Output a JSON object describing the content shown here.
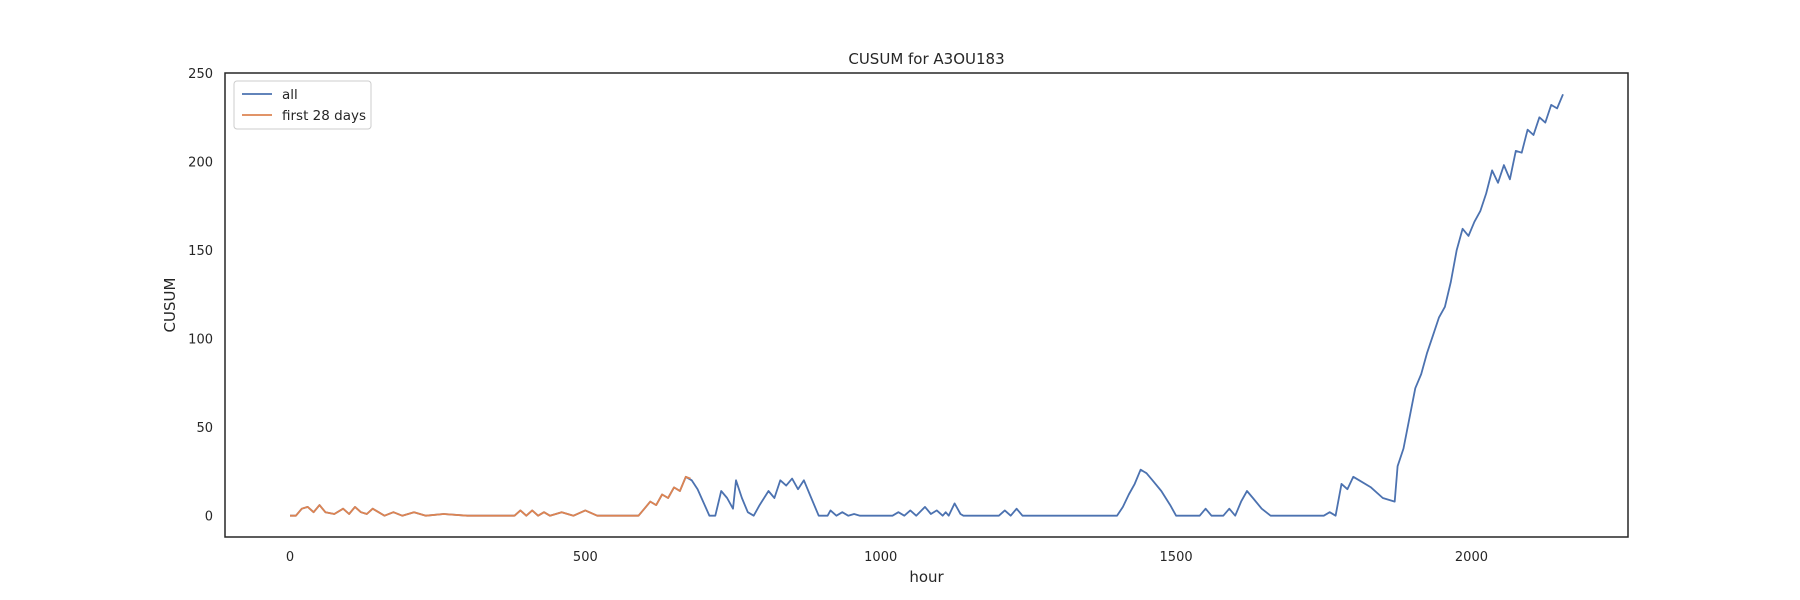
{
  "chart_data": {
    "type": "line",
    "title": "CUSUM for A3OU183",
    "xlabel": "hour",
    "ylabel": "CUSUM",
    "xlim": [
      -110,
      2265
    ],
    "ylim": [
      -12,
      250
    ],
    "xticks": [
      0,
      500,
      1000,
      1500,
      2000
    ],
    "yticks": [
      0,
      50,
      100,
      150,
      200,
      250
    ],
    "grid": false,
    "legend_placement": "top-left",
    "series": [
      {
        "name": "all",
        "color": "#4c72b0",
        "points": [
          [
            0,
            0
          ],
          [
            10,
            0
          ],
          [
            20,
            4
          ],
          [
            30,
            5
          ],
          [
            40,
            2
          ],
          [
            50,
            6
          ],
          [
            60,
            2
          ],
          [
            75,
            1
          ],
          [
            90,
            4
          ],
          [
            100,
            1
          ],
          [
            110,
            5
          ],
          [
            120,
            2
          ],
          [
            130,
            1
          ],
          [
            140,
            4
          ],
          [
            150,
            2
          ],
          [
            160,
            0
          ],
          [
            175,
            2
          ],
          [
            190,
            0
          ],
          [
            210,
            2
          ],
          [
            230,
            0
          ],
          [
            260,
            1
          ],
          [
            300,
            0
          ],
          [
            380,
            0
          ],
          [
            390,
            3
          ],
          [
            400,
            0
          ],
          [
            410,
            3
          ],
          [
            420,
            0
          ],
          [
            430,
            2
          ],
          [
            440,
            0
          ],
          [
            460,
            2
          ],
          [
            480,
            0
          ],
          [
            500,
            3
          ],
          [
            520,
            0
          ],
          [
            560,
            0
          ],
          [
            590,
            0
          ],
          [
            600,
            4
          ],
          [
            610,
            8
          ],
          [
            620,
            6
          ],
          [
            630,
            12
          ],
          [
            640,
            10
          ],
          [
            650,
            16
          ],
          [
            660,
            14
          ],
          [
            670,
            22
          ],
          [
            680,
            20
          ],
          [
            690,
            15
          ],
          [
            710,
            0
          ],
          [
            720,
            0
          ],
          [
            730,
            14
          ],
          [
            740,
            10
          ],
          [
            750,
            4
          ],
          [
            755,
            20
          ],
          [
            765,
            10
          ],
          [
            775,
            2
          ],
          [
            785,
            0
          ],
          [
            795,
            6
          ],
          [
            810,
            14
          ],
          [
            820,
            10
          ],
          [
            830,
            20
          ],
          [
            840,
            17
          ],
          [
            850,
            21
          ],
          [
            860,
            15
          ],
          [
            870,
            20
          ],
          [
            880,
            12
          ],
          [
            895,
            0
          ],
          [
            910,
            0
          ],
          [
            915,
            3
          ],
          [
            925,
            0
          ],
          [
            935,
            2
          ],
          [
            945,
            0
          ],
          [
            955,
            1
          ],
          [
            965,
            0
          ],
          [
            1020,
            0
          ],
          [
            1030,
            2
          ],
          [
            1040,
            0
          ],
          [
            1050,
            3
          ],
          [
            1060,
            0
          ],
          [
            1075,
            5
          ],
          [
            1085,
            1
          ],
          [
            1095,
            3
          ],
          [
            1105,
            0
          ],
          [
            1110,
            2
          ],
          [
            1115,
            0
          ],
          [
            1125,
            7
          ],
          [
            1135,
            1
          ],
          [
            1140,
            0
          ],
          [
            1200,
            0
          ],
          [
            1210,
            3
          ],
          [
            1220,
            0
          ],
          [
            1230,
            4
          ],
          [
            1240,
            0
          ],
          [
            1300,
            0
          ],
          [
            1400,
            0
          ],
          [
            1410,
            5
          ],
          [
            1420,
            12
          ],
          [
            1430,
            18
          ],
          [
            1440,
            26
          ],
          [
            1450,
            24
          ],
          [
            1460,
            20
          ],
          [
            1475,
            14
          ],
          [
            1490,
            6
          ],
          [
            1500,
            0
          ],
          [
            1540,
            0
          ],
          [
            1550,
            4
          ],
          [
            1560,
            0
          ],
          [
            1580,
            0
          ],
          [
            1590,
            4
          ],
          [
            1600,
            0
          ],
          [
            1610,
            8
          ],
          [
            1620,
            14
          ],
          [
            1630,
            10
          ],
          [
            1645,
            4
          ],
          [
            1660,
            0
          ],
          [
            1750,
            0
          ],
          [
            1760,
            2
          ],
          [
            1770,
            0
          ],
          [
            1780,
            18
          ],
          [
            1790,
            15
          ],
          [
            1800,
            22
          ],
          [
            1810,
            20
          ],
          [
            1830,
            16
          ],
          [
            1850,
            10
          ],
          [
            1870,
            8
          ],
          [
            1875,
            28
          ],
          [
            1885,
            38
          ],
          [
            1895,
            55
          ],
          [
            1905,
            72
          ],
          [
            1915,
            80
          ],
          [
            1925,
            92
          ],
          [
            1935,
            102
          ],
          [
            1945,
            112
          ],
          [
            1955,
            118
          ],
          [
            1965,
            132
          ],
          [
            1975,
            150
          ],
          [
            1985,
            162
          ],
          [
            1995,
            158
          ],
          [
            2005,
            166
          ],
          [
            2015,
            172
          ],
          [
            2025,
            182
          ],
          [
            2035,
            195
          ],
          [
            2045,
            188
          ],
          [
            2055,
            198
          ],
          [
            2065,
            190
          ],
          [
            2075,
            206
          ],
          [
            2085,
            205
          ],
          [
            2095,
            218
          ],
          [
            2105,
            215
          ],
          [
            2115,
            225
          ],
          [
            2125,
            222
          ],
          [
            2135,
            232
          ],
          [
            2145,
            230
          ],
          [
            2155,
            238
          ]
        ]
      },
      {
        "name": "first 28 days",
        "color": "#dd8452",
        "points": [
          [
            0,
            0
          ],
          [
            10,
            0
          ],
          [
            20,
            4
          ],
          [
            30,
            5
          ],
          [
            40,
            2
          ],
          [
            50,
            6
          ],
          [
            60,
            2
          ],
          [
            75,
            1
          ],
          [
            90,
            4
          ],
          [
            100,
            1
          ],
          [
            110,
            5
          ],
          [
            120,
            2
          ],
          [
            130,
            1
          ],
          [
            140,
            4
          ],
          [
            150,
            2
          ],
          [
            160,
            0
          ],
          [
            175,
            2
          ],
          [
            190,
            0
          ],
          [
            210,
            2
          ],
          [
            230,
            0
          ],
          [
            260,
            1
          ],
          [
            300,
            0
          ],
          [
            380,
            0
          ],
          [
            390,
            3
          ],
          [
            400,
            0
          ],
          [
            410,
            3
          ],
          [
            420,
            0
          ],
          [
            430,
            2
          ],
          [
            440,
            0
          ],
          [
            460,
            2
          ],
          [
            480,
            0
          ],
          [
            500,
            3
          ],
          [
            520,
            0
          ],
          [
            560,
            0
          ],
          [
            590,
            0
          ],
          [
            600,
            4
          ],
          [
            610,
            8
          ],
          [
            620,
            6
          ],
          [
            630,
            12
          ],
          [
            640,
            10
          ],
          [
            650,
            16
          ],
          [
            660,
            14
          ],
          [
            670,
            22
          ],
          [
            678,
            21
          ]
        ]
      }
    ]
  }
}
